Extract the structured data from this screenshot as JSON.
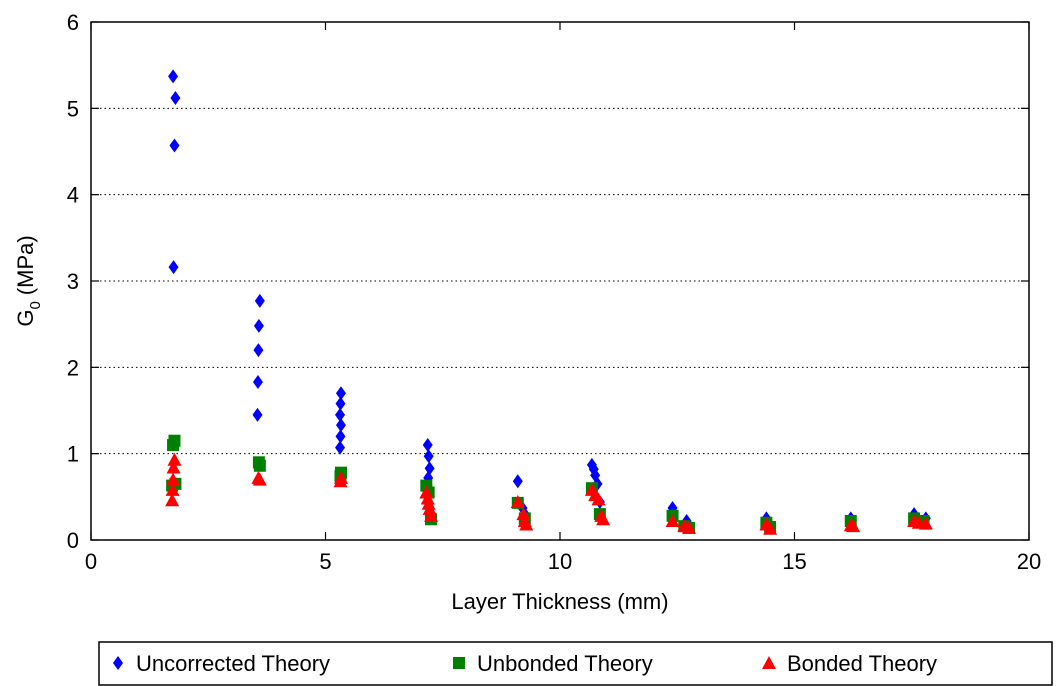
{
  "chart_data": {
    "type": "scatter",
    "xlabel": "Layer Thickness (mm)",
    "ylabel_main": "G",
    "ylabel_sub": "0",
    "ylabel_unit": "(MPa)",
    "xlim": [
      0,
      20
    ],
    "ylim": [
      0,
      6
    ],
    "xticks": [
      0,
      5,
      10,
      15,
      20
    ],
    "yticks": [
      0,
      1,
      2,
      3,
      4,
      5,
      6
    ],
    "grid": "y-dotted",
    "legend_position": "bottom-outside",
    "series": [
      {
        "name": "Uncorrected Theory",
        "marker": "diamond",
        "color": "#0000ff",
        "points": [
          [
            1.75,
            5.37
          ],
          [
            1.8,
            5.12
          ],
          [
            1.78,
            4.57
          ],
          [
            1.76,
            3.16
          ],
          [
            3.6,
            2.77
          ],
          [
            3.58,
            2.48
          ],
          [
            3.57,
            2.2
          ],
          [
            3.56,
            1.83
          ],
          [
            3.55,
            1.45
          ],
          [
            5.33,
            1.7
          ],
          [
            5.32,
            1.58
          ],
          [
            5.31,
            1.45
          ],
          [
            5.33,
            1.33
          ],
          [
            5.32,
            1.2
          ],
          [
            5.31,
            1.07
          ],
          [
            7.18,
            1.1
          ],
          [
            7.2,
            0.97
          ],
          [
            7.22,
            0.83
          ],
          [
            7.19,
            0.72
          ],
          [
            9.1,
            0.68
          ],
          [
            9.2,
            0.37
          ],
          [
            9.25,
            0.3
          ],
          [
            10.68,
            0.87
          ],
          [
            10.72,
            0.82
          ],
          [
            10.75,
            0.75
          ],
          [
            10.8,
            0.65
          ],
          [
            10.85,
            0.44
          ],
          [
            12.4,
            0.37
          ],
          [
            12.7,
            0.22
          ],
          [
            14.4,
            0.25
          ],
          [
            16.2,
            0.25
          ],
          [
            17.55,
            0.3
          ],
          [
            17.8,
            0.25
          ]
        ]
      },
      {
        "name": "Unbonded Theory",
        "marker": "square",
        "color": "#008000",
        "points": [
          [
            1.78,
            1.15
          ],
          [
            1.75,
            1.1
          ],
          [
            1.73,
            0.63
          ],
          [
            1.8,
            0.65
          ],
          [
            3.58,
            0.9
          ],
          [
            3.6,
            0.86
          ],
          [
            5.33,
            0.78
          ],
          [
            5.32,
            0.74
          ],
          [
            7.15,
            0.63
          ],
          [
            7.2,
            0.55
          ],
          [
            7.25,
            0.24
          ],
          [
            9.1,
            0.43
          ],
          [
            9.25,
            0.25
          ],
          [
            10.68,
            0.6
          ],
          [
            10.85,
            0.3
          ],
          [
            12.4,
            0.28
          ],
          [
            12.65,
            0.16
          ],
          [
            12.75,
            0.14
          ],
          [
            14.4,
            0.2
          ],
          [
            14.48,
            0.15
          ],
          [
            16.2,
            0.22
          ],
          [
            17.55,
            0.25
          ],
          [
            17.75,
            0.22
          ]
        ]
      },
      {
        "name": "Bonded Theory",
        "marker": "triangle",
        "color": "#ff0000",
        "points": [
          [
            1.78,
            0.93
          ],
          [
            1.76,
            0.84
          ],
          [
            1.75,
            0.7
          ],
          [
            1.74,
            0.58
          ],
          [
            1.73,
            0.46
          ],
          [
            3.57,
            0.72
          ],
          [
            3.6,
            0.7
          ],
          [
            5.33,
            0.72
          ],
          [
            5.32,
            0.68
          ],
          [
            7.15,
            0.55
          ],
          [
            7.18,
            0.48
          ],
          [
            7.2,
            0.42
          ],
          [
            7.22,
            0.36
          ],
          [
            7.25,
            0.28
          ],
          [
            9.1,
            0.44
          ],
          [
            9.22,
            0.3
          ],
          [
            9.25,
            0.22
          ],
          [
            9.28,
            0.18
          ],
          [
            10.68,
            0.58
          ],
          [
            10.75,
            0.52
          ],
          [
            10.82,
            0.47
          ],
          [
            10.88,
            0.28
          ],
          [
            10.92,
            0.24
          ],
          [
            12.4,
            0.22
          ],
          [
            12.65,
            0.16
          ],
          [
            12.75,
            0.14
          ],
          [
            14.4,
            0.18
          ],
          [
            14.48,
            0.13
          ],
          [
            16.2,
            0.17
          ],
          [
            16.25,
            0.16
          ],
          [
            17.55,
            0.22
          ],
          [
            17.65,
            0.2
          ],
          [
            17.8,
            0.19
          ]
        ]
      }
    ]
  }
}
